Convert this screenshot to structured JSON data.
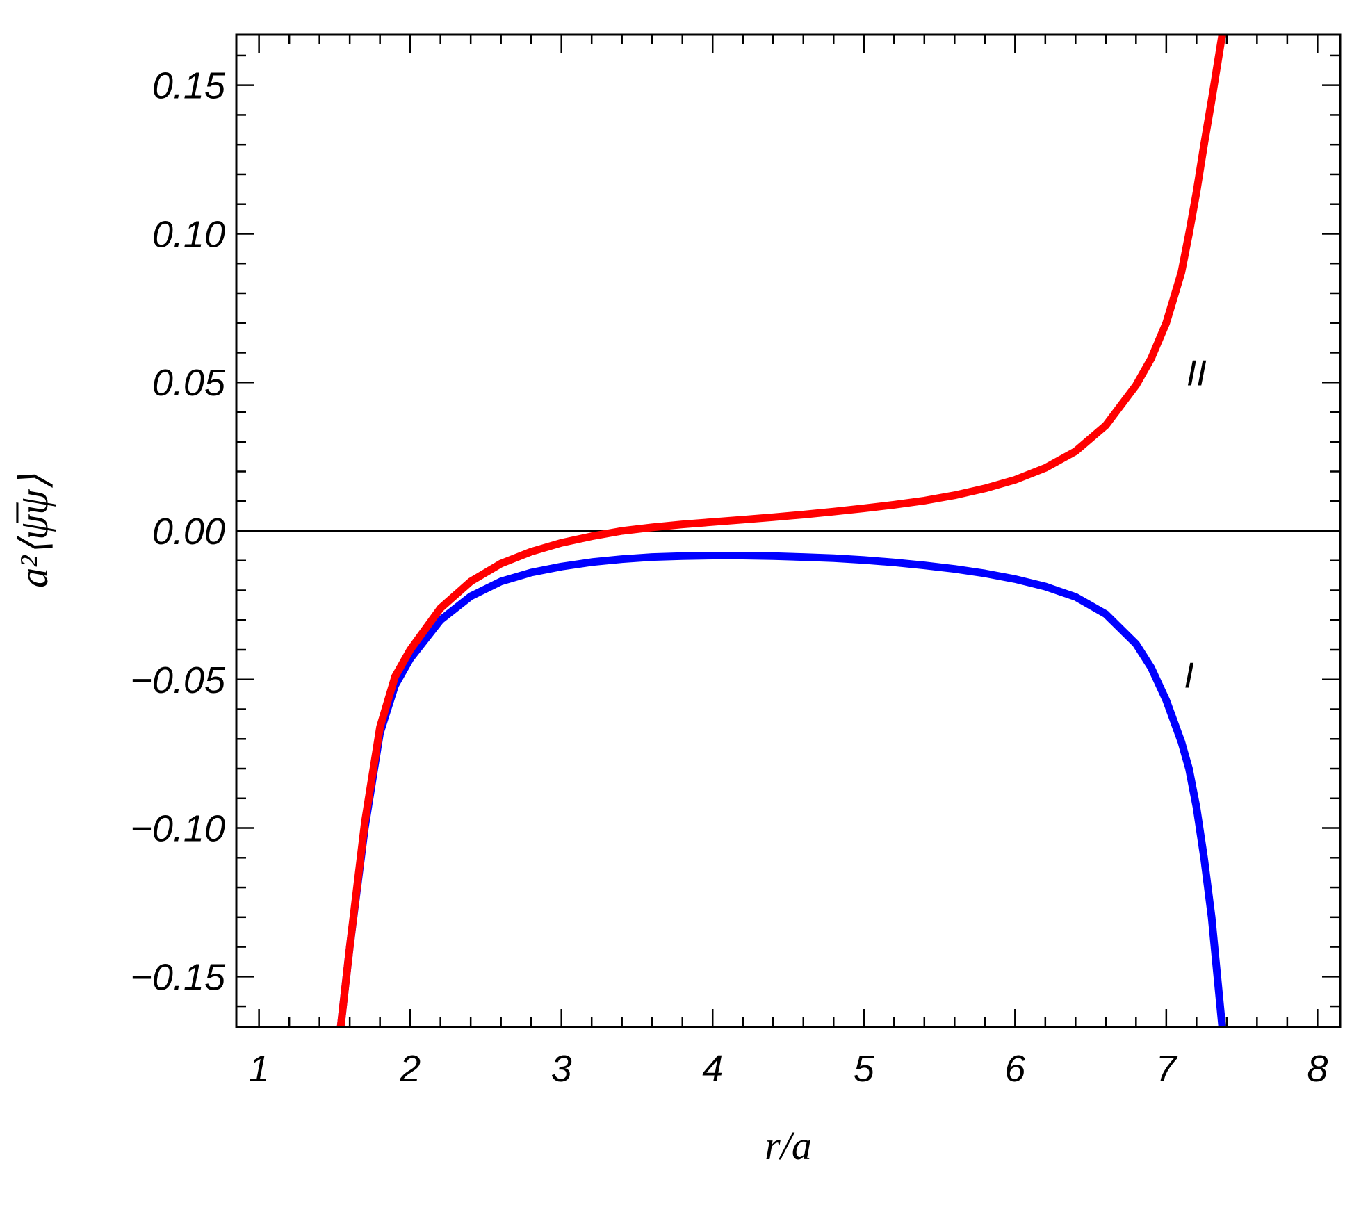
{
  "chart_data": {
    "type": "line",
    "title": "",
    "xlabel": "r/a",
    "ylabel": "a²⟨ψ̅ψ⟩",
    "xlim": [
      0.85,
      8.15
    ],
    "ylim": [
      -0.167,
      0.167
    ],
    "grid": false,
    "x_ticks": [
      1,
      2,
      3,
      4,
      5,
      6,
      7,
      8
    ],
    "x_tick_labels": [
      "1",
      "2",
      "3",
      "4",
      "5",
      "6",
      "7",
      "8"
    ],
    "y_ticks": [
      -0.15,
      -0.1,
      -0.05,
      0.0,
      0.05,
      0.1,
      0.15
    ],
    "y_tick_labels": [
      "−0.15",
      "−0.10",
      "−0.05",
      "0.00",
      "0.05",
      "0.10",
      "0.15"
    ],
    "zero_line": true,
    "series": [
      {
        "name": "I",
        "color": "#0000ff",
        "x": [
          1.54,
          1.6,
          1.7,
          1.8,
          1.9,
          2.0,
          2.2,
          2.4,
          2.6,
          2.8,
          3.0,
          3.2,
          3.4,
          3.6,
          3.8,
          4.0,
          4.2,
          4.4,
          4.6,
          4.8,
          5.0,
          5.2,
          5.4,
          5.6,
          5.8,
          6.0,
          6.2,
          6.4,
          6.6,
          6.8,
          6.9,
          7.0,
          7.1,
          7.15,
          7.2,
          7.25,
          7.3,
          7.37
        ],
        "y": [
          -0.167,
          -0.14,
          -0.1,
          -0.068,
          -0.052,
          -0.043,
          -0.03,
          -0.022,
          -0.017,
          -0.014,
          -0.012,
          -0.0105,
          -0.0095,
          -0.0088,
          -0.0085,
          -0.0083,
          -0.0083,
          -0.0085,
          -0.0088,
          -0.0092,
          -0.0098,
          -0.0106,
          -0.0116,
          -0.0128,
          -0.0143,
          -0.0162,
          -0.0187,
          -0.0222,
          -0.028,
          -0.038,
          -0.046,
          -0.057,
          -0.071,
          -0.08,
          -0.093,
          -0.11,
          -0.13,
          -0.167
        ]
      },
      {
        "name": "II",
        "color": "#ff0000",
        "x": [
          1.54,
          1.6,
          1.7,
          1.8,
          1.9,
          2.0,
          2.2,
          2.4,
          2.6,
          2.8,
          3.0,
          3.2,
          3.4,
          3.6,
          3.8,
          4.0,
          4.2,
          4.4,
          4.6,
          4.8,
          5.0,
          5.2,
          5.4,
          5.6,
          5.8,
          6.0,
          6.2,
          6.4,
          6.6,
          6.8,
          6.9,
          7.0,
          7.1,
          7.15,
          7.2,
          7.25,
          7.3,
          7.37
        ],
        "y": [
          -0.167,
          -0.14,
          -0.098,
          -0.066,
          -0.049,
          -0.04,
          -0.026,
          -0.017,
          -0.011,
          -0.007,
          -0.004,
          -0.0018,
          0.0,
          0.0012,
          0.0022,
          0.003,
          0.0038,
          0.0046,
          0.0055,
          0.0065,
          0.0076,
          0.0088,
          0.0102,
          0.012,
          0.0143,
          0.0172,
          0.0212,
          0.0268,
          0.0355,
          0.049,
          0.058,
          0.07,
          0.087,
          0.1,
          0.114,
          0.13,
          0.145,
          0.167
        ]
      }
    ],
    "annotations": [
      {
        "text": "I",
        "x": 7.15,
        "y": -0.0485
      },
      {
        "text": "II",
        "x": 7.2,
        "y": 0.0532
      }
    ]
  }
}
